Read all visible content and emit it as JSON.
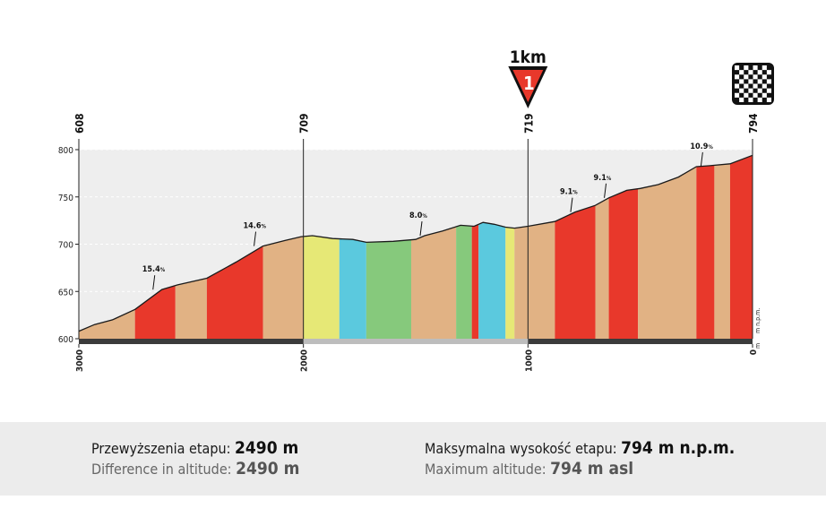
{
  "chart_data": {
    "type": "area",
    "title": "",
    "xlabel": "",
    "ylabel": "",
    "x_reversed": true,
    "xlim": [
      3000,
      0
    ],
    "ylim": [
      600,
      800
    ],
    "y_ticks": [
      "800",
      "750",
      "700",
      "650",
      "600"
    ],
    "x_ticks": [
      "3000",
      "2000",
      "1000",
      "0"
    ],
    "unit_labels": [
      "m n.p.m.",
      "m"
    ],
    "profile": [
      {
        "d": 3000,
        "alt": 608
      },
      {
        "d": 2930,
        "alt": 615
      },
      {
        "d": 2850,
        "alt": 620
      },
      {
        "d": 2750,
        "alt": 631
      },
      {
        "d": 2630,
        "alt": 652
      },
      {
        "d": 2560,
        "alt": 657
      },
      {
        "d": 2430,
        "alt": 664
      },
      {
        "d": 2300,
        "alt": 681
      },
      {
        "d": 2180,
        "alt": 698
      },
      {
        "d": 2080,
        "alt": 704
      },
      {
        "d": 2010,
        "alt": 708
      },
      {
        "d": 1960,
        "alt": 709
      },
      {
        "d": 1870,
        "alt": 706
      },
      {
        "d": 1780,
        "alt": 705
      },
      {
        "d": 1720,
        "alt": 702
      },
      {
        "d": 1600,
        "alt": 703
      },
      {
        "d": 1500,
        "alt": 705
      },
      {
        "d": 1460,
        "alt": 709
      },
      {
        "d": 1380,
        "alt": 714
      },
      {
        "d": 1300,
        "alt": 720
      },
      {
        "d": 1240,
        "alt": 719
      },
      {
        "d": 1200,
        "alt": 723
      },
      {
        "d": 1150,
        "alt": 721
      },
      {
        "d": 1100,
        "alt": 718
      },
      {
        "d": 1060,
        "alt": 717
      },
      {
        "d": 1000,
        "alt": 719
      },
      {
        "d": 880,
        "alt": 724
      },
      {
        "d": 790,
        "alt": 734
      },
      {
        "d": 700,
        "alt": 741
      },
      {
        "d": 640,
        "alt": 749
      },
      {
        "d": 560,
        "alt": 757
      },
      {
        "d": 500,
        "alt": 759
      },
      {
        "d": 420,
        "alt": 763
      },
      {
        "d": 330,
        "alt": 771
      },
      {
        "d": 250,
        "alt": 782
      },
      {
        "d": 190,
        "alt": 783
      },
      {
        "d": 100,
        "alt": 785
      },
      {
        "d": 0,
        "alt": 794
      }
    ],
    "segments": [
      {
        "from": 3000,
        "to": 2750,
        "color": "#e1b284"
      },
      {
        "from": 2750,
        "to": 2570,
        "color": "#e8382b"
      },
      {
        "from": 2570,
        "to": 2430,
        "color": "#e1b284"
      },
      {
        "from": 2430,
        "to": 2180,
        "color": "#e8382b"
      },
      {
        "from": 2180,
        "to": 2000,
        "color": "#e1b284"
      },
      {
        "from": 2000,
        "to": 1840,
        "color": "#e6e876"
      },
      {
        "from": 1840,
        "to": 1720,
        "color": "#5bc9de"
      },
      {
        "from": 1720,
        "to": 1520,
        "color": "#86c97c"
      },
      {
        "from": 1520,
        "to": 1320,
        "color": "#e1b284"
      },
      {
        "from": 1320,
        "to": 1250,
        "color": "#86c97c"
      },
      {
        "from": 1250,
        "to": 1220,
        "color": "#e8382b"
      },
      {
        "from": 1220,
        "to": 1100,
        "color": "#5bc9de"
      },
      {
        "from": 1100,
        "to": 1060,
        "color": "#e6e876"
      },
      {
        "from": 1060,
        "to": 880,
        "color": "#e1b284"
      },
      {
        "from": 880,
        "to": 700,
        "color": "#e8382b"
      },
      {
        "from": 700,
        "to": 640,
        "color": "#e1b284"
      },
      {
        "from": 640,
        "to": 510,
        "color": "#e8382b"
      },
      {
        "from": 510,
        "to": 250,
        "color": "#e1b284"
      },
      {
        "from": 250,
        "to": 170,
        "color": "#e8382b"
      },
      {
        "from": 170,
        "to": 100,
        "color": "#e1b284"
      },
      {
        "from": 100,
        "to": 0,
        "color": "#e8382b"
      }
    ],
    "markers": [
      {
        "d": 3000,
        "label": "608"
      },
      {
        "d": 2000,
        "label": "709"
      },
      {
        "d": 1000,
        "label": "719"
      },
      {
        "d": 0,
        "label": "794"
      }
    ],
    "gradients": [
      {
        "d": 2670,
        "alt": 652,
        "label": "15.4",
        "unit": "%"
      },
      {
        "d": 2220,
        "alt": 698,
        "label": "14.6",
        "unit": "%"
      },
      {
        "d": 1480,
        "alt": 709,
        "label": "8.0",
        "unit": "%"
      },
      {
        "d": 810,
        "alt": 734,
        "label": "9.1",
        "unit": "%"
      },
      {
        "d": 660,
        "alt": 749,
        "label": "9.1",
        "unit": "%"
      },
      {
        "d": 230,
        "alt": 782,
        "label": "10.9",
        "unit": "%"
      }
    ],
    "flamme_rouge": {
      "d": 1000,
      "label": "1km",
      "number": "1"
    },
    "finish_flag": {
      "d": 0
    },
    "colors": {
      "climb": "#e8382b",
      "base": "#e1b284",
      "yellow": "#e6e876",
      "blue": "#5bc9de",
      "green": "#86c97c",
      "plot_bg": "#eeeeee",
      "ground": "#3b3b3b"
    }
  },
  "footer": {
    "left": {
      "pl_label": "Przewyższenia etapu:",
      "pl_value": "2490 m",
      "en_label": "Difference in altitude:",
      "en_value": "2490 m"
    },
    "right": {
      "pl_label": "Maksymalna wysokość etapu:",
      "pl_value": "794 m n.p.m.",
      "en_label": "Maximum altitude:",
      "en_value": "794 m asl"
    }
  }
}
